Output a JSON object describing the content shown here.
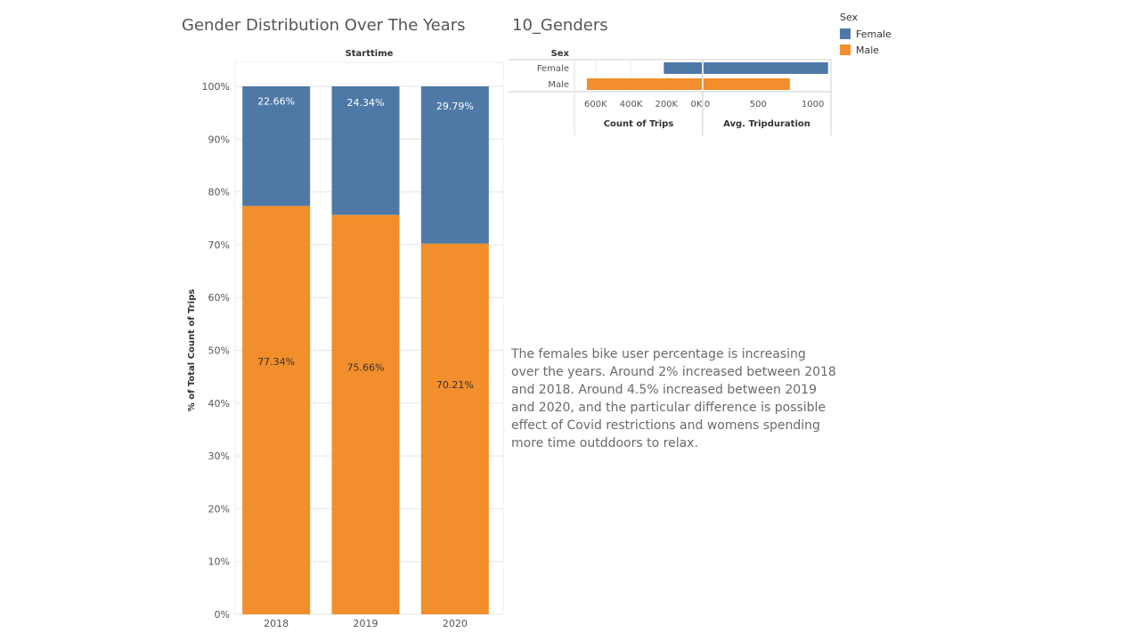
{
  "titles": {
    "left": "Gender Distribution Over The Years",
    "right": "10_Genders"
  },
  "legend": {
    "title": "Sex",
    "items": [
      {
        "label": "Female",
        "color": "#4e79a7"
      },
      {
        "label": "Male",
        "color": "#f28e2b"
      }
    ]
  },
  "annotation": "The females bike user percentage is increasing over the years. Around 2% increased between 2018 and 2018. Around 4.5% increased between 2019 and 2020, and the particular difference is possible effect of Covid restrictions and womens spending more time outddoors to relax.",
  "chart_data": [
    {
      "type": "bar",
      "stacked": true,
      "column_header": "Starttime",
      "categories": [
        "2018",
        "2019",
        "2020"
      ],
      "series": [
        {
          "name": "Female",
          "color": "#4e79a7",
          "values": [
            22.66,
            24.34,
            29.79
          ],
          "labels": [
            "22.66%",
            "24.34%",
            "29.79%"
          ]
        },
        {
          "name": "Male",
          "color": "#f28e2b",
          "values": [
            77.34,
            75.66,
            70.21
          ],
          "labels": [
            "77.34%",
            "75.66%",
            "70.21%"
          ]
        }
      ],
      "ylabel": "% of Total Count of Trips",
      "ylim": [
        0,
        100
      ],
      "yticks": [
        0,
        10,
        20,
        30,
        40,
        50,
        60,
        70,
        80,
        90,
        100
      ],
      "ytick_labels": [
        "0%",
        "10%",
        "20%",
        "30%",
        "40%",
        "50%",
        "60%",
        "70%",
        "80%",
        "90%",
        "100%"
      ],
      "grid": true
    },
    {
      "type": "bar",
      "orientation": "horizontal",
      "row_header": "Sex",
      "categories": [
        "Female",
        "Male"
      ],
      "panels": [
        {
          "xlabel": "Count of Trips",
          "reversed": true,
          "xlim": [
            0,
            700000
          ],
          "xticks": [
            0,
            200000,
            400000,
            600000
          ],
          "xtick_labels": [
            "0K",
            "200K",
            "400K",
            "600K"
          ],
          "series": [
            {
              "name": "Count of Trips",
              "values": [
                215000,
                650000
              ]
            }
          ]
        },
        {
          "xlabel": "Avg. Tripduration",
          "xlim": [
            0,
            1150
          ],
          "xticks": [
            0,
            500,
            1000
          ],
          "xtick_labels": [
            "0",
            "500",
            "1000"
          ],
          "series": [
            {
              "name": "Avg. Tripduration",
              "values": [
                1140,
                790
              ]
            }
          ]
        }
      ],
      "colors": {
        "Female": "#4e79a7",
        "Male": "#f28e2b"
      }
    }
  ]
}
